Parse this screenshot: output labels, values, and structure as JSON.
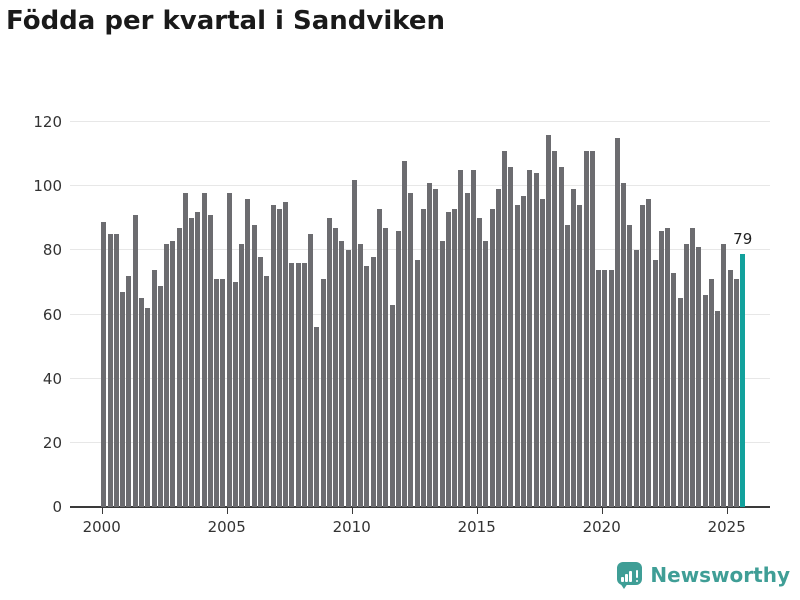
{
  "title": "Födda per kvartal i Sandviken",
  "chart_data": {
    "type": "bar",
    "title": "Födda per kvartal i Sandviken",
    "x_start_year": 2000,
    "x_start_quarter": 1,
    "x_end_year": 2025,
    "x_end_quarter": 3,
    "values": [
      89,
      85,
      85,
      67,
      72,
      91,
      65,
      62,
      74,
      69,
      82,
      83,
      87,
      98,
      90,
      92,
      98,
      91,
      71,
      71,
      98,
      70,
      82,
      96,
      88,
      78,
      72,
      94,
      93,
      95,
      76,
      76,
      76,
      85,
      56,
      71,
      90,
      87,
      83,
      80,
      102,
      82,
      75,
      78,
      93,
      87,
      63,
      86,
      108,
      98,
      77,
      93,
      101,
      99,
      83,
      92,
      93,
      105,
      98,
      105,
      90,
      83,
      93,
      99,
      111,
      106,
      94,
      97,
      105,
      104,
      96,
      116,
      111,
      106,
      88,
      99,
      94,
      111,
      111,
      74,
      74,
      74,
      115,
      101,
      88,
      80,
      94,
      96,
      77,
      86,
      87,
      73,
      65,
      82,
      87,
      81,
      66,
      71,
      61,
      82,
      74,
      71,
      79
    ],
    "highlight": {
      "index_from_end": 0,
      "value": 79,
      "label": "79",
      "color": "#12a19c"
    },
    "bar_color": "#6c6c70",
    "y_ticks": [
      "0",
      "20",
      "40",
      "60",
      "80",
      "100",
      "120"
    ],
    "y_tick_values": [
      0,
      20,
      40,
      60,
      80,
      100,
      120
    ],
    "ylim": [
      0,
      123
    ],
    "x_tick_labels": [
      "2000",
      "2005",
      "2010",
      "2015",
      "2020",
      "2025"
    ],
    "grid": true,
    "legend": "none"
  },
  "colors": {
    "bar_gray": "#6c6c70",
    "highlight_teal": "#12a19c",
    "axis": "#3a3a3a",
    "grid": "#e7e7e7",
    "text": "#333333",
    "title": "#1a1a1a",
    "brand_teal": "#3f9e96"
  },
  "footer": {
    "brand": "Newsworthy"
  }
}
